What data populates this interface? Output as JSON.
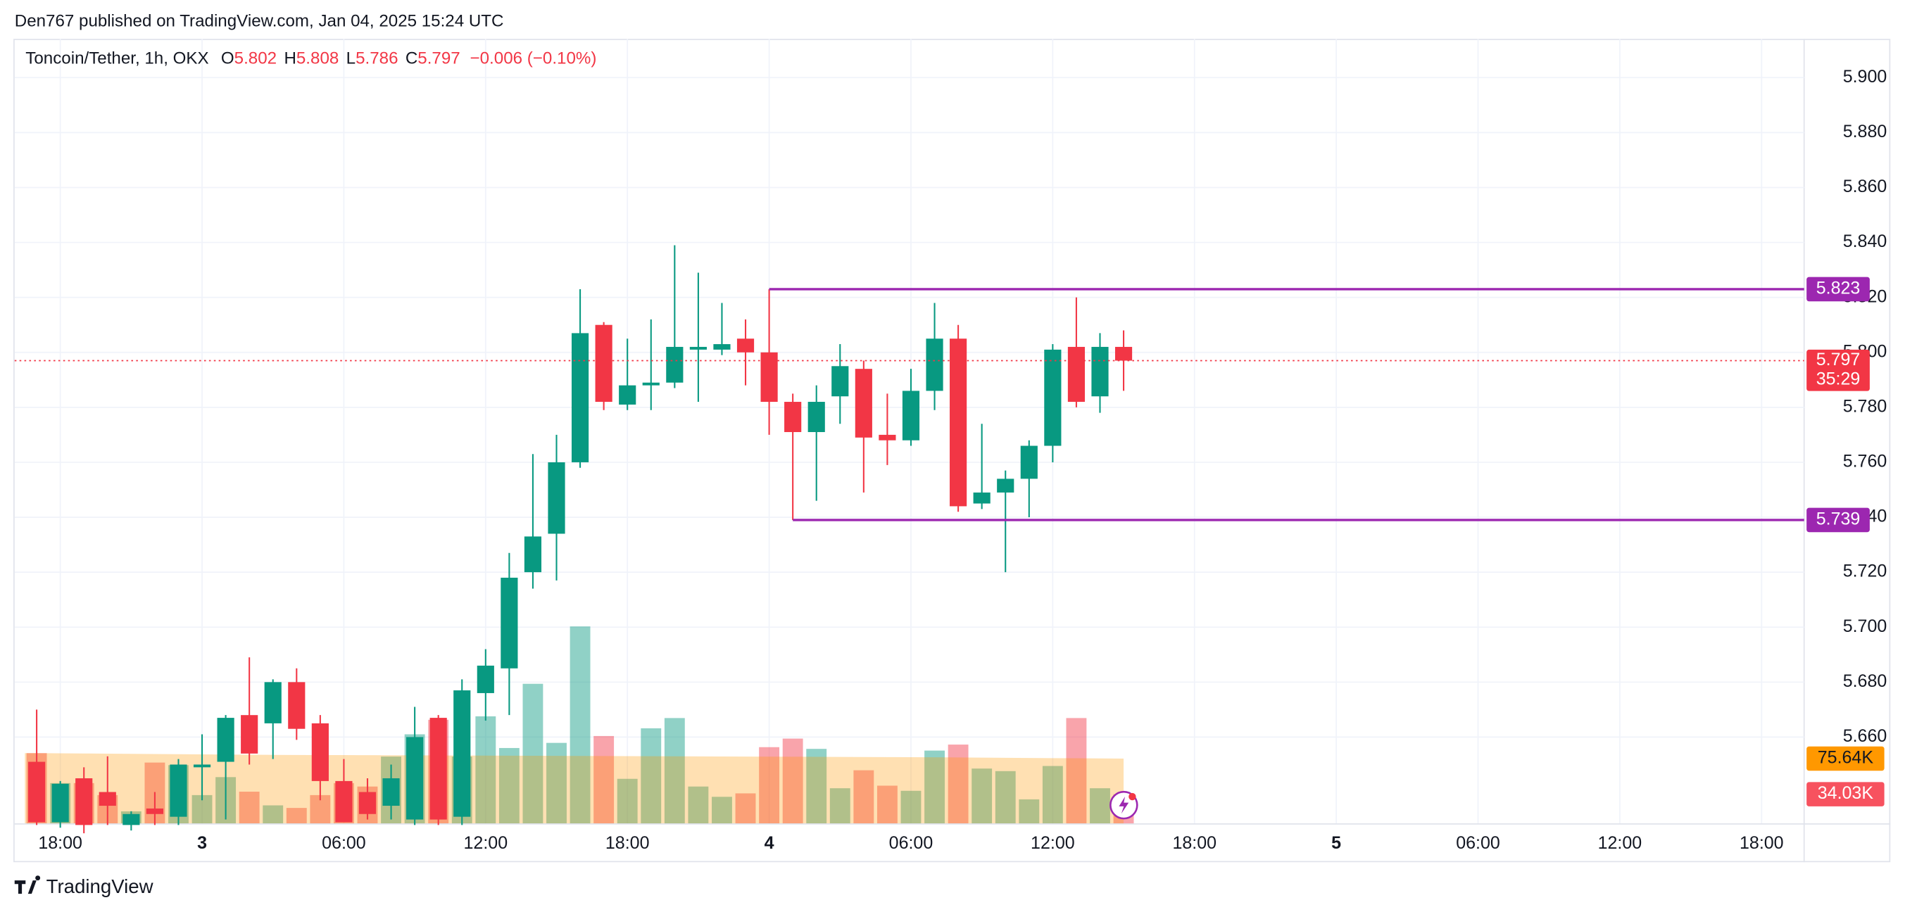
{
  "header": "Den767 published on TradingView.com, Jan 04, 2025 15:24 UTC",
  "footer": "TradingView",
  "chart_data": {
    "type": "candlestick",
    "symbol": "Toncoin/Tether, 1h, OKX",
    "ohlc_letters": [
      "O",
      "H",
      "L",
      "C"
    ],
    "change_label": "−0.006 (−0.10%)",
    "countdown": "35:29",
    "up_color": "#089981",
    "down_color": "#f23645",
    "x": [
      "2025-01-02T17:00",
      "2025-01-02T18:00",
      "2025-01-02T19:00",
      "2025-01-02T20:00",
      "2025-01-02T21:00",
      "2025-01-02T22:00",
      "2025-01-02T23:00",
      "2025-01-03T00:00",
      "2025-01-03T01:00",
      "2025-01-03T02:00",
      "2025-01-03T03:00",
      "2025-01-03T04:00",
      "2025-01-03T05:00",
      "2025-01-03T06:00",
      "2025-01-03T07:00",
      "2025-01-03T08:00",
      "2025-01-03T09:00",
      "2025-01-03T10:00",
      "2025-01-03T11:00",
      "2025-01-03T12:00",
      "2025-01-03T13:00",
      "2025-01-03T14:00",
      "2025-01-03T15:00",
      "2025-01-03T16:00",
      "2025-01-03T17:00",
      "2025-01-03T18:00",
      "2025-01-03T19:00",
      "2025-01-03T20:00",
      "2025-01-03T21:00",
      "2025-01-03T22:00",
      "2025-01-03T23:00",
      "2025-01-04T00:00",
      "2025-01-04T01:00",
      "2025-01-04T02:00",
      "2025-01-04T03:00",
      "2025-01-04T04:00",
      "2025-01-04T05:00",
      "2025-01-04T06:00",
      "2025-01-04T07:00",
      "2025-01-04T08:00",
      "2025-01-04T09:00",
      "2025-01-04T10:00",
      "2025-01-04T11:00",
      "2025-01-04T12:00",
      "2025-01-04T13:00",
      "2025-01-04T14:00",
      "2025-01-04T15:00"
    ],
    "open": [
      5.651,
      5.629,
      5.645,
      5.64,
      5.628,
      5.634,
      5.631,
      5.649,
      5.651,
      5.668,
      5.665,
      5.68,
      5.665,
      5.644,
      5.64,
      5.635,
      5.63,
      5.667,
      5.631,
      5.676,
      5.685,
      5.72,
      5.734,
      5.76,
      5.81,
      5.781,
      5.788,
      5.789,
      5.801,
      5.801,
      5.805,
      5.8,
      5.782,
      5.771,
      5.784,
      5.794,
      5.77,
      5.768,
      5.786,
      5.805,
      5.745,
      5.749,
      5.754,
      5.766,
      5.802,
      5.784,
      5.802
    ],
    "high": [
      5.67,
      5.644,
      5.649,
      5.653,
      5.633,
      5.64,
      5.652,
      5.661,
      5.668,
      5.689,
      5.681,
      5.685,
      5.668,
      5.652,
      5.645,
      5.65,
      5.671,
      5.668,
      5.681,
      5.692,
      5.727,
      5.763,
      5.77,
      5.823,
      5.811,
      5.805,
      5.812,
      5.839,
      5.829,
      5.818,
      5.812,
      5.823,
      5.785,
      5.788,
      5.803,
      5.797,
      5.785,
      5.794,
      5.818,
      5.81,
      5.774,
      5.757,
      5.768,
      5.803,
      5.82,
      5.807,
      5.808
    ],
    "low": [
      5.628,
      5.627,
      5.625,
      5.628,
      5.626,
      5.628,
      5.628,
      5.637,
      5.63,
      5.65,
      5.652,
      5.659,
      5.637,
      5.629,
      5.63,
      5.63,
      5.628,
      5.628,
      5.628,
      5.666,
      5.668,
      5.714,
      5.717,
      5.758,
      5.779,
      5.779,
      5.779,
      5.787,
      5.782,
      5.799,
      5.788,
      5.77,
      5.739,
      5.746,
      5.774,
      5.749,
      5.759,
      5.766,
      5.779,
      5.742,
      5.743,
      5.72,
      5.74,
      5.76,
      5.78,
      5.778,
      5.786
    ],
    "close": [
      5.629,
      5.643,
      5.628,
      5.635,
      5.632,
      5.632,
      5.65,
      5.65,
      5.667,
      5.654,
      5.68,
      5.663,
      5.644,
      5.629,
      5.632,
      5.645,
      5.66,
      5.63,
      5.677,
      5.686,
      5.718,
      5.733,
      5.76,
      5.807,
      5.782,
      5.788,
      5.789,
      5.802,
      5.802,
      5.803,
      5.8,
      5.782,
      5.771,
      5.782,
      5.795,
      5.769,
      5.768,
      5.786,
      5.805,
      5.744,
      5.749,
      5.754,
      5.766,
      5.801,
      5.782,
      5.802,
      5.797
    ],
    "volume": {
      "values": [
        82,
        47,
        47,
        33,
        14,
        71,
        68,
        33,
        54,
        37,
        21,
        18,
        33,
        47,
        43,
        78,
        104,
        121,
        78,
        125,
        88,
        163,
        94,
        230,
        102,
        52,
        111,
        123,
        43,
        31,
        35,
        89,
        99,
        87,
        41,
        62,
        44,
        38,
        85,
        92,
        64,
        61,
        28,
        67,
        123,
        41,
        34.03
      ],
      "last_label": "34.03K"
    },
    "volume_ma": {
      "color": "#ff9800",
      "values": [
        82.0,
        81.8,
        81.6,
        81.4,
        81.2,
        81.0,
        80.8,
        80.6,
        80.4,
        80.2,
        80.0,
        79.9,
        79.8,
        79.7,
        79.6,
        79.5,
        79.4,
        79.3,
        79.2,
        79.1,
        79.0,
        78.9,
        78.8,
        78.7,
        78.6,
        78.5,
        78.4,
        78.3,
        78.2,
        78.1,
        78.0,
        77.9,
        77.8,
        77.7,
        77.6,
        77.5,
        77.4,
        77.3,
        77.2,
        77.0,
        76.8,
        76.6,
        76.4,
        76.2,
        76.0,
        75.8,
        75.64
      ],
      "last_label": "75.64K"
    },
    "vlim": [
      0,
      200
    ],
    "lines": [
      {
        "value": 5.823,
        "start": "2025-01-04T00:00",
        "color": "#9c27b0"
      },
      {
        "value": 5.739,
        "start": "2025-01-04T01:00",
        "color": "#9c27b0"
      }
    ],
    "xlim": [
      "2025-01-02T16:04",
      "2025-01-05T19:48"
    ],
    "xticks": [
      {
        "value": "2025-01-02T18:00",
        "label": "18:00"
      },
      {
        "value": "2025-01-03T00:00",
        "label": "3"
      },
      {
        "value": "2025-01-03T06:00",
        "label": "06:00"
      },
      {
        "value": "2025-01-03T12:00",
        "label": "12:00"
      },
      {
        "value": "2025-01-03T18:00",
        "label": "18:00"
      },
      {
        "value": "2025-01-04T00:00",
        "label": "4"
      },
      {
        "value": "2025-01-04T06:00",
        "label": "06:00"
      },
      {
        "value": "2025-01-04T12:00",
        "label": "12:00"
      },
      {
        "value": "2025-01-04T18:00",
        "label": "18:00"
      },
      {
        "value": "2025-01-05T00:00",
        "label": "5"
      },
      {
        "value": "2025-01-05T06:00",
        "label": "06:00"
      },
      {
        "value": "2025-01-05T12:00",
        "label": "12:00"
      },
      {
        "value": "2025-01-05T18:00",
        "label": "18:00"
      }
    ],
    "ylim": [
      5.6286,
      5.9141
    ],
    "yticks": [
      {
        "value": 5.66,
        "label": "5.660"
      },
      {
        "value": 5.68,
        "label": "5.680"
      },
      {
        "value": 5.7,
        "label": "5.700"
      },
      {
        "value": 5.72,
        "label": "5.720"
      },
      {
        "value": 5.74,
        "label": "5.740"
      },
      {
        "value": 5.76,
        "label": "5.760"
      },
      {
        "value": 5.78,
        "label": "5.780"
      },
      {
        "value": 5.8,
        "label": "5.800"
      },
      {
        "value": 5.82,
        "label": "5.820"
      },
      {
        "value": 5.84,
        "label": "5.840"
      },
      {
        "value": 5.86,
        "label": "5.860"
      },
      {
        "value": 5.88,
        "label": "5.880"
      },
      {
        "value": 5.9,
        "label": "5.900"
      }
    ],
    "grid": true
  }
}
